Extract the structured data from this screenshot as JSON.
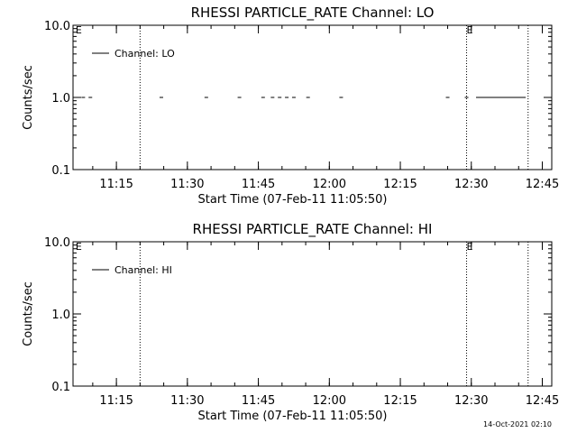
{
  "footer_timestamp": "14-Oct-2021 02:10",
  "chart_data": [
    {
      "type": "line",
      "title": "RHESSI PARTICLE_RATE Channel: LO",
      "xlabel": "Start Time (07-Feb-11 11:05:50)",
      "ylabel": "Counts/sec",
      "yscale": "log",
      "ylim": [
        0.1,
        10.0
      ],
      "ytick_labels": [
        "0.1",
        "1.0",
        "10.0"
      ],
      "xlim": [
        "11:05:50",
        "12:47:00"
      ],
      "xtick_labels": [
        "11:15",
        "11:30",
        "11:45",
        "12:00",
        "12:15",
        "12:30",
        "12:45"
      ],
      "legend": {
        "label": "Channel: LO",
        "position": "top-left"
      },
      "vlines": [
        "11:20",
        "12:29",
        "12:42"
      ],
      "markers": [
        {
          "label": "E",
          "x": "11:06"
        },
        {
          "label": "E",
          "x": "12:29"
        }
      ],
      "series": [
        {
          "name": "Channel: LO",
          "points": [
            {
              "x": "11:06:30",
              "y": 1.0
            },
            {
              "x": "11:08:00",
              "y": 1.0
            },
            {
              "x": "11:09:30",
              "y": 1.0
            },
            {
              "x": "11:24:30",
              "y": 1.0
            },
            {
              "x": "11:34:00",
              "y": 1.0
            },
            {
              "x": "11:41:00",
              "y": 1.0
            },
            {
              "x": "11:46:00",
              "y": 1.0
            },
            {
              "x": "11:48:00",
              "y": 1.0
            },
            {
              "x": "11:49:30",
              "y": 1.0
            },
            {
              "x": "11:51:00",
              "y": 1.0
            },
            {
              "x": "11:52:30",
              "y": 1.0
            },
            {
              "x": "11:55:30",
              "y": 1.0
            },
            {
              "x": "12:02:30",
              "y": 1.0
            },
            {
              "x": "12:25:00",
              "y": 1.0
            },
            {
              "x": "12:29:00",
              "y": 1.0
            }
          ],
          "segments": [
            {
              "x_start": "12:31:00",
              "x_end": "12:41:30",
              "y": 1.0
            }
          ]
        }
      ]
    },
    {
      "type": "line",
      "title": "RHESSI PARTICLE_RATE Channel: HI",
      "xlabel": "Start Time (07-Feb-11 11:05:50)",
      "ylabel": "Counts/sec",
      "yscale": "log",
      "ylim": [
        0.1,
        10.0
      ],
      "ytick_labels": [
        "0.1",
        "1.0",
        "10.0"
      ],
      "xlim": [
        "11:05:50",
        "12:47:00"
      ],
      "xtick_labels": [
        "11:15",
        "11:30",
        "11:45",
        "12:00",
        "12:15",
        "12:30",
        "12:45"
      ],
      "legend": {
        "label": "Channel: HI",
        "position": "top-left"
      },
      "vlines": [
        "11:20",
        "12:29",
        "12:42"
      ],
      "markers": [
        {
          "label": "E",
          "x": "11:06"
        },
        {
          "label": "E",
          "x": "12:29"
        }
      ],
      "series": [
        {
          "name": "Channel: HI",
          "points": [],
          "segments": []
        }
      ]
    }
  ]
}
